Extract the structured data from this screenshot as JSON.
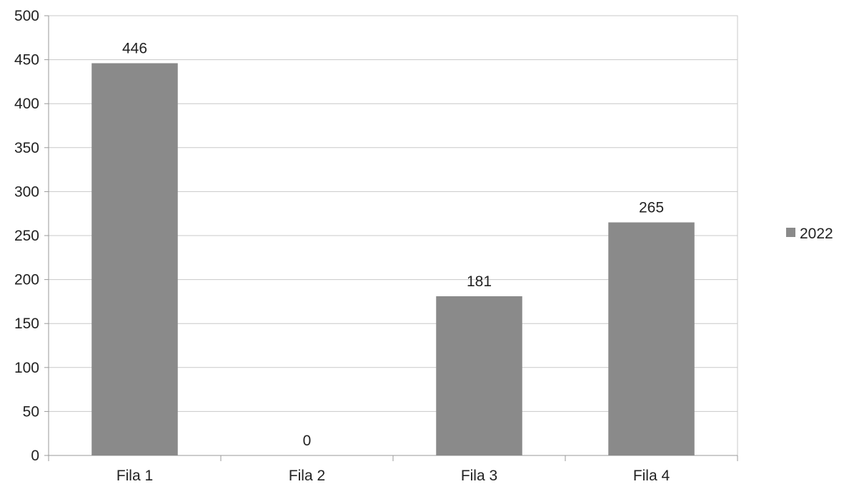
{
  "chart_data": {
    "type": "bar",
    "categories": [
      "Fila 1",
      "Fila 2",
      "Fila 3",
      "Fila 4"
    ],
    "series": [
      {
        "name": "2022",
        "values": [
          446,
          0,
          181,
          265
        ],
        "data_labels": [
          "446",
          "0",
          "181",
          "265"
        ],
        "color": "#8a8a8a"
      }
    ],
    "ylim": [
      0,
      500
    ],
    "yticks": [
      0,
      50,
      100,
      150,
      200,
      250,
      300,
      350,
      400,
      450,
      500
    ],
    "ytick_labels": [
      "0",
      "50",
      "100",
      "150",
      "200",
      "250",
      "300",
      "350",
      "400",
      "450",
      "500"
    ],
    "grid": true,
    "legend": {
      "position": "right",
      "entries": [
        "2022"
      ]
    },
    "colors": {
      "bar": "#8a8a8a",
      "grid": "#c8c8c8",
      "axis": "#9a9a9a",
      "text": "#222222"
    }
  }
}
